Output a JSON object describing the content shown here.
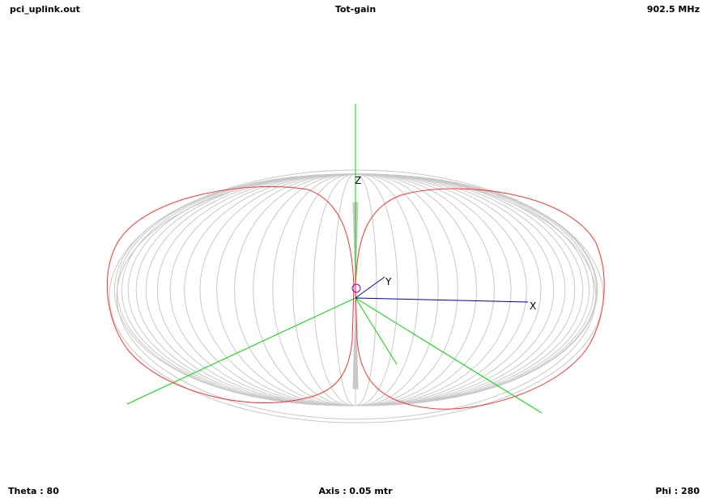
{
  "header": {
    "file": "pci_uplink.out",
    "quantity": "Tot-gain",
    "frequency": "902.5 MHz"
  },
  "footer": {
    "theta": "Theta : 80",
    "axis": "Axis : 0.05 mtr",
    "phi": "Phi : 280"
  },
  "axes": {
    "x": "X",
    "y": "Y",
    "z": "Z"
  },
  "colors": {
    "mesh": "#c8c8c8",
    "cut": "#ff3030",
    "plane_axes": "#00dd00",
    "vector_axes": "#0000b0",
    "marker": "#9000c0"
  },
  "mesh_phi_steps": 36
}
